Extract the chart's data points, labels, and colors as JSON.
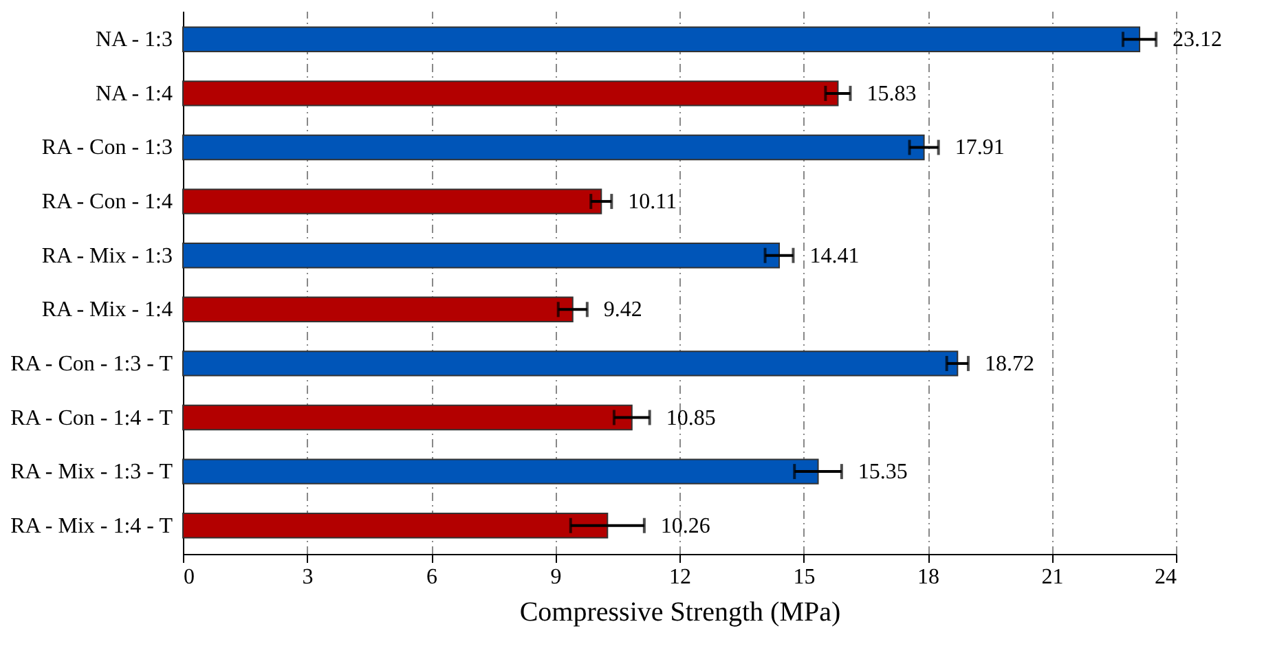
{
  "chart_data": {
    "type": "bar",
    "orientation": "horizontal",
    "xlabel": "Compressive Strength (MPa)",
    "categories": [
      "NA - 1:3",
      "NA - 1:4",
      "RA - Con - 1:3",
      "RA - Con - 1:4",
      "RA - Mix - 1:3",
      "RA - Mix - 1:4",
      "RA - Con - 1:3 - T",
      "RA - Con - 1:4 - T",
      "RA - Mix - 1:3 - T",
      "RA - Mix - 1:4 - T"
    ],
    "values": [
      23.12,
      15.83,
      17.91,
      10.11,
      14.41,
      9.42,
      18.72,
      10.85,
      15.35,
      10.26
    ],
    "errors": [
      0.4,
      0.3,
      0.35,
      0.25,
      0.34,
      0.35,
      0.26,
      0.43,
      0.57,
      0.89
    ],
    "colors": [
      "#0055b8",
      "#b30000",
      "#0055b8",
      "#b30000",
      "#0055b8",
      "#b30000",
      "#0055b8",
      "#b30000",
      "#0055b8",
      "#b30000"
    ],
    "xlim": [
      0,
      24
    ],
    "xticks": [
      0,
      3,
      6,
      9,
      12,
      15,
      18,
      21,
      24
    ],
    "grid": "x",
    "data_labels": true
  }
}
